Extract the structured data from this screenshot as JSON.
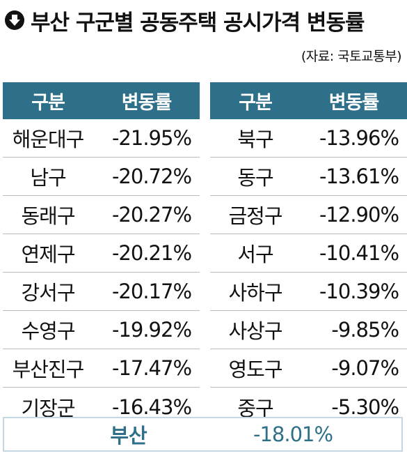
{
  "header": {
    "title": "부산 구군별 공동주택 공시가격 변동률",
    "source": "(자료: 국토교통부)",
    "icon": "down-arrow-circle-icon"
  },
  "chart_data": {
    "type": "table",
    "columns": [
      "구분",
      "변동률"
    ],
    "left_table": [
      {
        "district": "해운대구",
        "change": "-21.95%"
      },
      {
        "district": "남구",
        "change": "-20.72%"
      },
      {
        "district": "동래구",
        "change": "-20.27%"
      },
      {
        "district": "연제구",
        "change": "-20.21%"
      },
      {
        "district": "강서구",
        "change": "-20.17%"
      },
      {
        "district": "수영구",
        "change": "-19.92%"
      },
      {
        "district": "부산진구",
        "change": "-17.47%"
      },
      {
        "district": "기장군",
        "change": "-16.43%"
      }
    ],
    "right_table": [
      {
        "district": "북구",
        "change": "-13.96%"
      },
      {
        "district": "동구",
        "change": "-13.61%"
      },
      {
        "district": "금정구",
        "change": "-12.90%"
      },
      {
        "district": "서구",
        "change": "-10.41%"
      },
      {
        "district": "사하구",
        "change": "-10.39%"
      },
      {
        "district": "사상구",
        "change": "-9.85%"
      },
      {
        "district": "영도구",
        "change": "-9.07%"
      },
      {
        "district": "중구",
        "change": "-5.30%"
      }
    ],
    "summary": {
      "label": "부산",
      "value": "-18.01%"
    }
  },
  "colors": {
    "header_bg": "#2e6f8a",
    "summary_border": "#c4d8e4",
    "summary_text": "#2e6f8a"
  }
}
